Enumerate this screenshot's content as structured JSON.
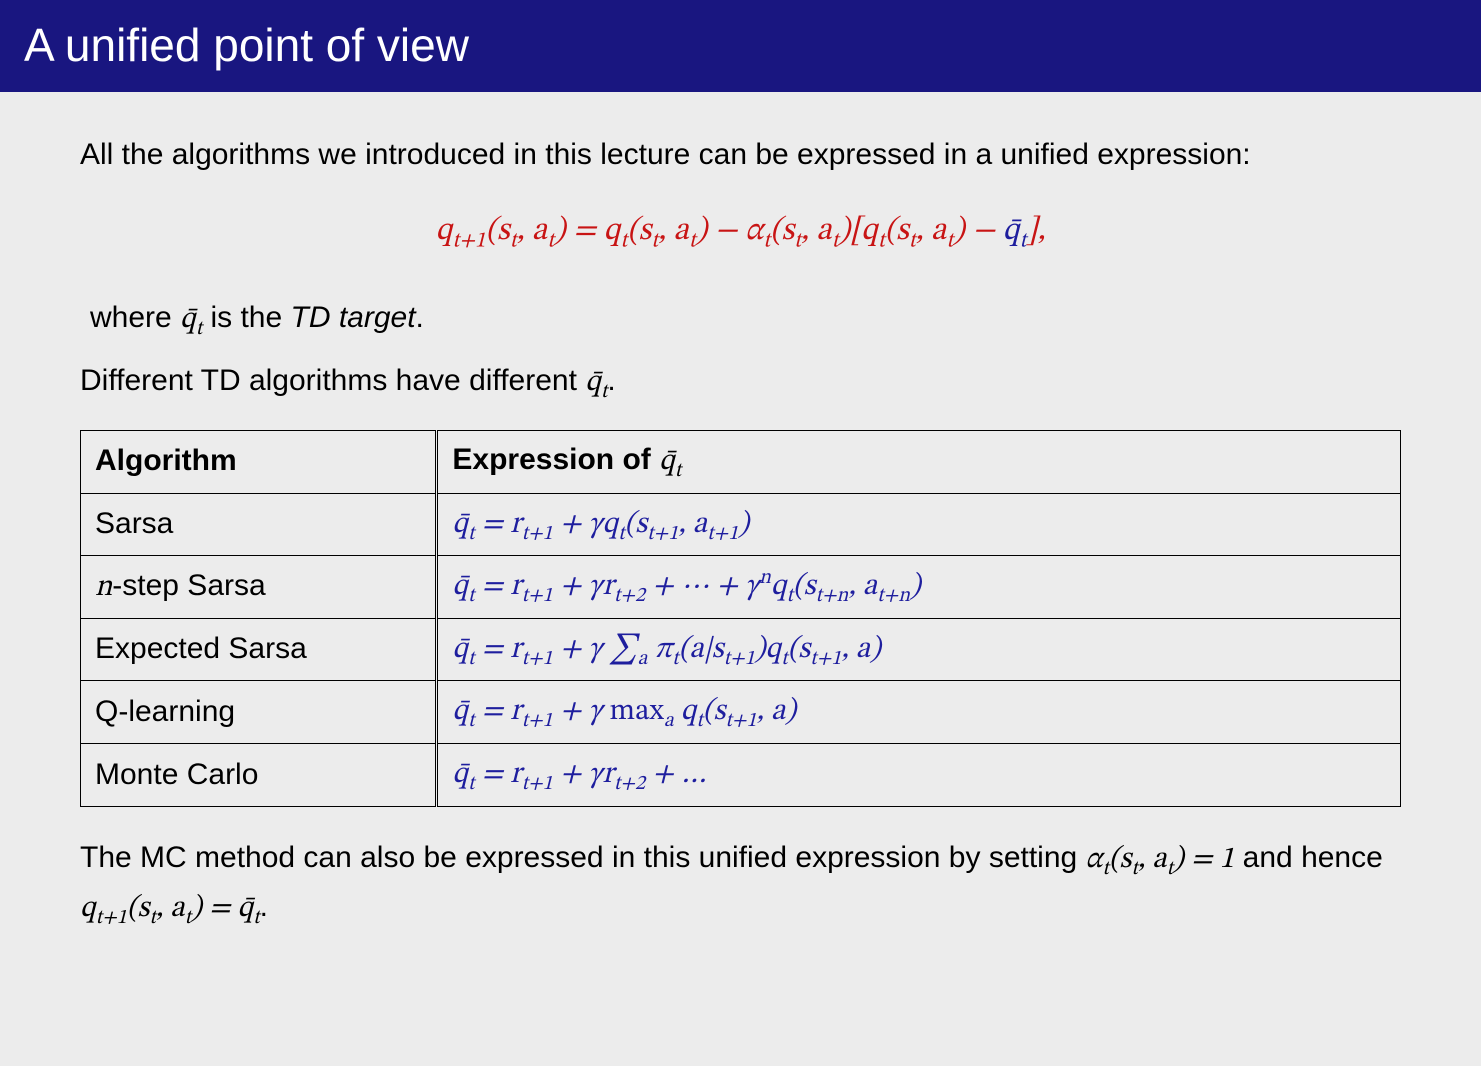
{
  "title": "A unified point of view",
  "intro": "All the algorithms we introduced in this lecture can be expressed in a unified expression:",
  "equation_red": "q<sub>t+1</sub>(s<sub>t</sub>, a<sub>t</sub>) = q<sub>t</sub>(s<sub>t</sub>, a<sub>t</sub>) − α<sub>t</sub>(s<sub>t</sub>, a<sub>t</sub>)[q<sub>t</sub>(s<sub>t</sub>, a<sub>t</sub>) − ",
  "equation_blue": "q̄<sub>t</sub>",
  "equation_red_end": "],",
  "where_prefix": "where ",
  "where_qbar": "q̄<sub>t</sub>",
  "where_mid": " is the ",
  "where_target": "TD target",
  "where_end": ".",
  "diff_prefix": "Different TD algorithms have different ",
  "diff_qbar": "q̄<sub>t</sub>",
  "diff_end": ".",
  "th_algo": "Algorithm",
  "th_expr_prefix": "Expression of ",
  "th_expr_qbar": "q̄<sub>t</sub>",
  "rows": [
    {
      "label": "Sarsa",
      "label_html": "Sarsa",
      "expr": "q̄<sub>t</sub> = r<sub>t+1</sub> + γq<sub>t</sub>(s<sub>t+1</sub>, a<sub>t+1</sub>)"
    },
    {
      "label": "n-step Sarsa",
      "label_html": "<span class=\"math\">n</span>-step Sarsa",
      "expr": "q̄<sub>t</sub> = r<sub>t+1</sub> + γr<sub>t+2</sub> + ⋯ + γ<sup>n</sup>q<sub>t</sub>(s<sub>t+n</sub>, a<sub>t+n</sub>)"
    },
    {
      "label": "Expected Sarsa",
      "label_html": "Expected Sarsa",
      "expr": "q̄<sub>t</sub> = r<sub>t+1</sub> + γ ∑<sub>a</sub> π<sub>t</sub>(a|s<sub>t+1</sub>)q<sub>t</sub>(s<sub>t+1</sub>, a)"
    },
    {
      "label": "Q-learning",
      "label_html": "Q-learning",
      "expr": "q̄<sub>t</sub> = r<sub>t+1</sub> + γ <span class=\"rm\">max</span><sub>a</sub> q<sub>t</sub>(s<sub>t+1</sub>, a)"
    },
    {
      "label": "Monte Carlo",
      "label_html": "Monte Carlo",
      "expr": "q̄<sub>t</sub> = r<sub>t+1</sub> + γr<sub>t+2</sub> + …"
    }
  ],
  "outro_prefix": "The MC method can also be expressed in this unified expression by setting ",
  "outro_math1": "α<sub>t</sub>(s<sub>t</sub>, a<sub>t</sub>) = 1",
  "outro_mid": " and hence ",
  "outro_math2": "q<sub>t+1</sub>(s<sub>t</sub>, a<sub>t</sub>) = q̄<sub>t</sub>",
  "outro_end": ".",
  "colors": {
    "title_bg": "#191680",
    "body_bg": "#ececec",
    "red": "#c81414",
    "blue": "#1e1e9e"
  }
}
